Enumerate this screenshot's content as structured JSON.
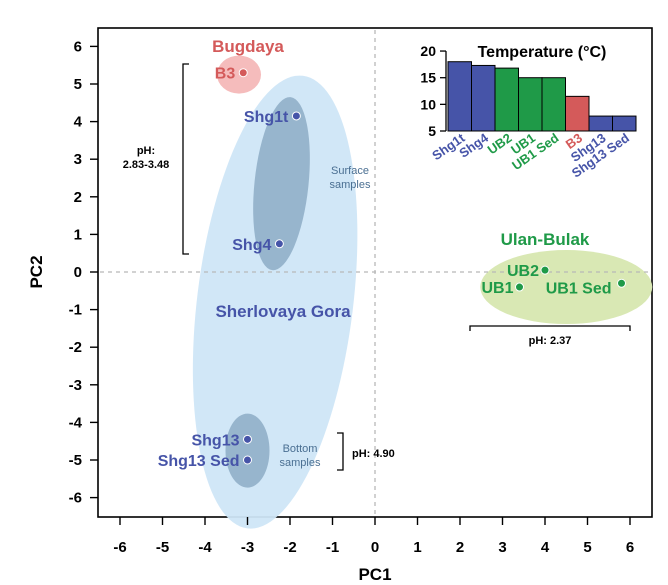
{
  "chart_data": {
    "type": "scatter",
    "xlabel": "PC1",
    "ylabel": "PC2",
    "xlim": [
      -6.6,
      6.6
    ],
    "ylim": [
      -6.4,
      6.4
    ],
    "xticks": [
      "-6",
      "-5",
      "-4",
      "-3",
      "-2",
      "-1",
      "0",
      "1",
      "2",
      "3",
      "4",
      "5",
      "6"
    ],
    "yticks": [
      "-6",
      "-5",
      "-4",
      "-3",
      "-2",
      "-1",
      "0",
      "1",
      "2",
      "3",
      "4",
      "5",
      "6"
    ],
    "grid": false,
    "colors": {
      "blue": "#4654a8",
      "green": "#1f9a48",
      "red": "#d45a5a",
      "blue_ellipse": "#cfe6f7",
      "blue_inner": "#7f9fba",
      "green_ellipse": "#d9e8b4",
      "red_ellipse": "#f5bcbc"
    },
    "groups": [
      {
        "label": "Bugdaya",
        "color": "red"
      },
      {
        "label": "Sherlovaya Gora",
        "color": "blue"
      },
      {
        "label": "Ulan-Bulak",
        "color": "green"
      }
    ],
    "points": [
      {
        "label": "B3",
        "x": -3.1,
        "y": 5.3,
        "color": "red"
      },
      {
        "label": "Shg1t",
        "x": -1.85,
        "y": 4.15,
        "color": "blue"
      },
      {
        "label": "Shg4",
        "x": -2.25,
        "y": 0.75,
        "color": "blue"
      },
      {
        "label": "Shg13",
        "x": -3.0,
        "y": -4.45,
        "color": "blue"
      },
      {
        "label": "Shg13 Sed",
        "x": -3.0,
        "y": -5.0,
        "color": "blue"
      },
      {
        "label": "UB2",
        "x": 4.0,
        "y": 0.05,
        "color": "green"
      },
      {
        "label": "UB1",
        "x": 3.4,
        "y": -0.4,
        "color": "green"
      },
      {
        "label": "UB1 Sed",
        "x": 5.8,
        "y": -0.3,
        "color": "green"
      }
    ],
    "annotations": {
      "surface": "Surface\nsamples",
      "bottom": "Bottom\nsamples",
      "ph_surface": "pH:\n2.83-3.48",
      "ph_bottom": "pH: 4.90",
      "ph_ub": "pH: 2.37"
    },
    "inset": {
      "type": "bar",
      "title": "Temperature (°C)",
      "categories": [
        "Shg1t",
        "Shg4",
        "UB2",
        "UB1",
        "UB1 Sed",
        "B3",
        "Shg13",
        "Shg13 Sed"
      ],
      "values": [
        18,
        17.3,
        16.8,
        15,
        15,
        11.5,
        7.8,
        7.8
      ],
      "category_colors": [
        "blue",
        "blue",
        "green",
        "green",
        "green",
        "red",
        "blue",
        "blue"
      ],
      "ylim": [
        5,
        20
      ],
      "yticks": [
        "5",
        "10",
        "15",
        "20"
      ]
    }
  }
}
